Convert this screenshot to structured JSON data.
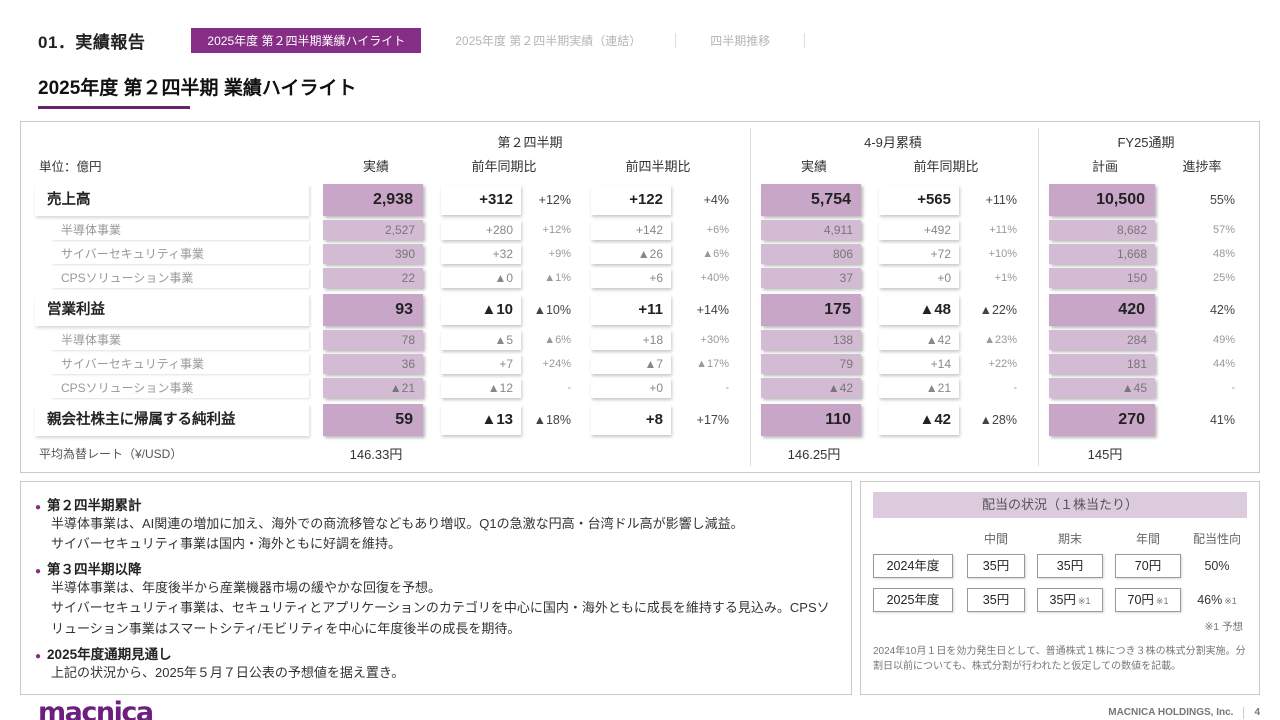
{
  "colors": {
    "accent": "#862D86",
    "accent_dark": "#6A2270",
    "cell_main": "#C8A6C8",
    "cell_sub": "#D3BBD3",
    "panel_header": "#DCCBDC"
  },
  "header": {
    "section": "01．実績報告",
    "tabs": [
      {
        "label": "2025年度 第２四半期業績ハイライト",
        "active": true
      },
      {
        "label": "2025年度 第２四半期実績（連結）",
        "active": false
      },
      {
        "label": "四半期推移",
        "active": false
      }
    ]
  },
  "title": "2025年度 第２四半期 業績ハイライト",
  "table": {
    "unit": "単位：億円",
    "groups": [
      "第２四半期",
      "4-9月累積",
      "FY25通期"
    ],
    "columns": {
      "actual": "実績",
      "yoy": "前年同期比",
      "qoq": "前四半期比",
      "cum_actual": "実績",
      "cum_yoy": "前年同期比",
      "plan": "計画",
      "progress": "進捗率"
    },
    "rows": [
      {
        "level": "main",
        "label": "売上高",
        "q2_actual": "2,938",
        "q2_yoy": "+312",
        "q2_yoy_pct": "+12%",
        "q2_qoq": "+122",
        "q2_qoq_pct": "+4%",
        "cum_actual": "5,754",
        "cum_yoy": "+565",
        "cum_yoy_pct": "+11%",
        "fy_plan": "10,500",
        "fy_progress": "55%"
      },
      {
        "level": "sub",
        "label": "半導体事業",
        "q2_actual": "2,527",
        "q2_yoy": "+280",
        "q2_yoy_pct": "+12%",
        "q2_qoq": "+142",
        "q2_qoq_pct": "+6%",
        "cum_actual": "4,911",
        "cum_yoy": "+492",
        "cum_yoy_pct": "+11%",
        "fy_plan": "8,682",
        "fy_progress": "57%"
      },
      {
        "level": "sub",
        "label": "サイバーセキュリティ事業",
        "q2_actual": "390",
        "q2_yoy": "+32",
        "q2_yoy_pct": "+9%",
        "q2_qoq": "▲26",
        "q2_qoq_pct": "▲6%",
        "cum_actual": "806",
        "cum_yoy": "+72",
        "cum_yoy_pct": "+10%",
        "fy_plan": "1,668",
        "fy_progress": "48%"
      },
      {
        "level": "sub",
        "label": "CPSソリューション事業",
        "q2_actual": "22",
        "q2_yoy": "▲0",
        "q2_yoy_pct": "▲1%",
        "q2_qoq": "+6",
        "q2_qoq_pct": "+40%",
        "cum_actual": "37",
        "cum_yoy": "+0",
        "cum_yoy_pct": "+1%",
        "fy_plan": "150",
        "fy_progress": "25%"
      },
      {
        "level": "main",
        "label": "営業利益",
        "q2_actual": "93",
        "q2_yoy": "▲10",
        "q2_yoy_pct": "▲10%",
        "q2_qoq": "+11",
        "q2_qoq_pct": "+14%",
        "cum_actual": "175",
        "cum_yoy": "▲48",
        "cum_yoy_pct": "▲22%",
        "fy_plan": "420",
        "fy_progress": "42%"
      },
      {
        "level": "sub",
        "label": "半導体事業",
        "q2_actual": "78",
        "q2_yoy": "▲5",
        "q2_yoy_pct": "▲6%",
        "q2_qoq": "+18",
        "q2_qoq_pct": "+30%",
        "cum_actual": "138",
        "cum_yoy": "▲42",
        "cum_yoy_pct": "▲23%",
        "fy_plan": "284",
        "fy_progress": "49%"
      },
      {
        "level": "sub",
        "label": "サイバーセキュリティ事業",
        "q2_actual": "36",
        "q2_yoy": "+7",
        "q2_yoy_pct": "+24%",
        "q2_qoq": "▲7",
        "q2_qoq_pct": "▲17%",
        "cum_actual": "79",
        "cum_yoy": "+14",
        "cum_yoy_pct": "+22%",
        "fy_plan": "181",
        "fy_progress": "44%"
      },
      {
        "level": "sub",
        "label": "CPSソリューション事業",
        "q2_actual": "▲21",
        "q2_yoy": "▲12",
        "q2_yoy_pct": "-",
        "q2_qoq": "+0",
        "q2_qoq_pct": "-",
        "cum_actual": "▲42",
        "cum_yoy": "▲21",
        "cum_yoy_pct": "-",
        "fy_plan": "▲45",
        "fy_progress": "-"
      },
      {
        "level": "main",
        "label": "親会社株主に帰属する純利益",
        "q2_actual": "59",
        "q2_yoy": "▲13",
        "q2_yoy_pct": "▲18%",
        "q2_qoq": "+8",
        "q2_qoq_pct": "+17%",
        "cum_actual": "110",
        "cum_yoy": "▲42",
        "cum_yoy_pct": "▲28%",
        "fy_plan": "270",
        "fy_progress": "41%"
      }
    ],
    "fx": {
      "label": "平均為替レート（¥/USD）",
      "q2": "146.33円",
      "cum": "146.25円",
      "fy": "145円"
    }
  },
  "commentary": {
    "bullet_glyph": "●",
    "bullets": [
      {
        "heading": "第２四半期累計",
        "lines": [
          "半導体事業は、AI関連の増加に加え、海外での商流移管などもあり増収。Q1の急激な円高・台湾ドル高が影響し減益。",
          "サイバーセキュリティ事業は国内・海外ともに好調を維持。"
        ]
      },
      {
        "heading": "第３四半期以降",
        "lines": [
          "半導体事業は、年度後半から産業機器市場の緩やかな回復を予想。",
          "サイバーセキュリティ事業は、セキュリティとアプリケーションのカテゴリを中心に国内・海外ともに成長を維持する見込み。CPSソリューション事業はスマートシティ/モビリティを中心に年度後半の成長を期待。"
        ]
      },
      {
        "heading": "2025年度通期見通し",
        "lines": [
          "上記の状況から、2025年５月７日公表の予想値を据え置き。"
        ]
      }
    ]
  },
  "dividend": {
    "title": "配当の状況（１株当たり）",
    "col_headers": [
      "中間",
      "期末",
      "年間",
      "配当性向"
    ],
    "rows": [
      {
        "year": "2024年度",
        "interim": {
          "v": "35円",
          "note": ""
        },
        "yearend": {
          "v": "35円",
          "note": ""
        },
        "annual": {
          "v": "70円",
          "note": ""
        },
        "payout": {
          "v": "50%",
          "note": ""
        }
      },
      {
        "year": "2025年度",
        "interim": {
          "v": "35円",
          "note": ""
        },
        "yearend": {
          "v": "35円",
          "note": "※1"
        },
        "annual": {
          "v": "70円",
          "note": "※1"
        },
        "payout": {
          "v": "46%",
          "note": "※1"
        }
      }
    ],
    "forecast_note": "※1 予想",
    "footnote": "2024年10月１日を効力発生日として、普通株式１株につき３株の株式分割実施。分割日以前についても、株式分割が行われたと仮定しての数値を記載。"
  },
  "footer": {
    "logo": "macnica",
    "company": "MACNICA HOLDINGS, Inc.",
    "page": "4"
  }
}
